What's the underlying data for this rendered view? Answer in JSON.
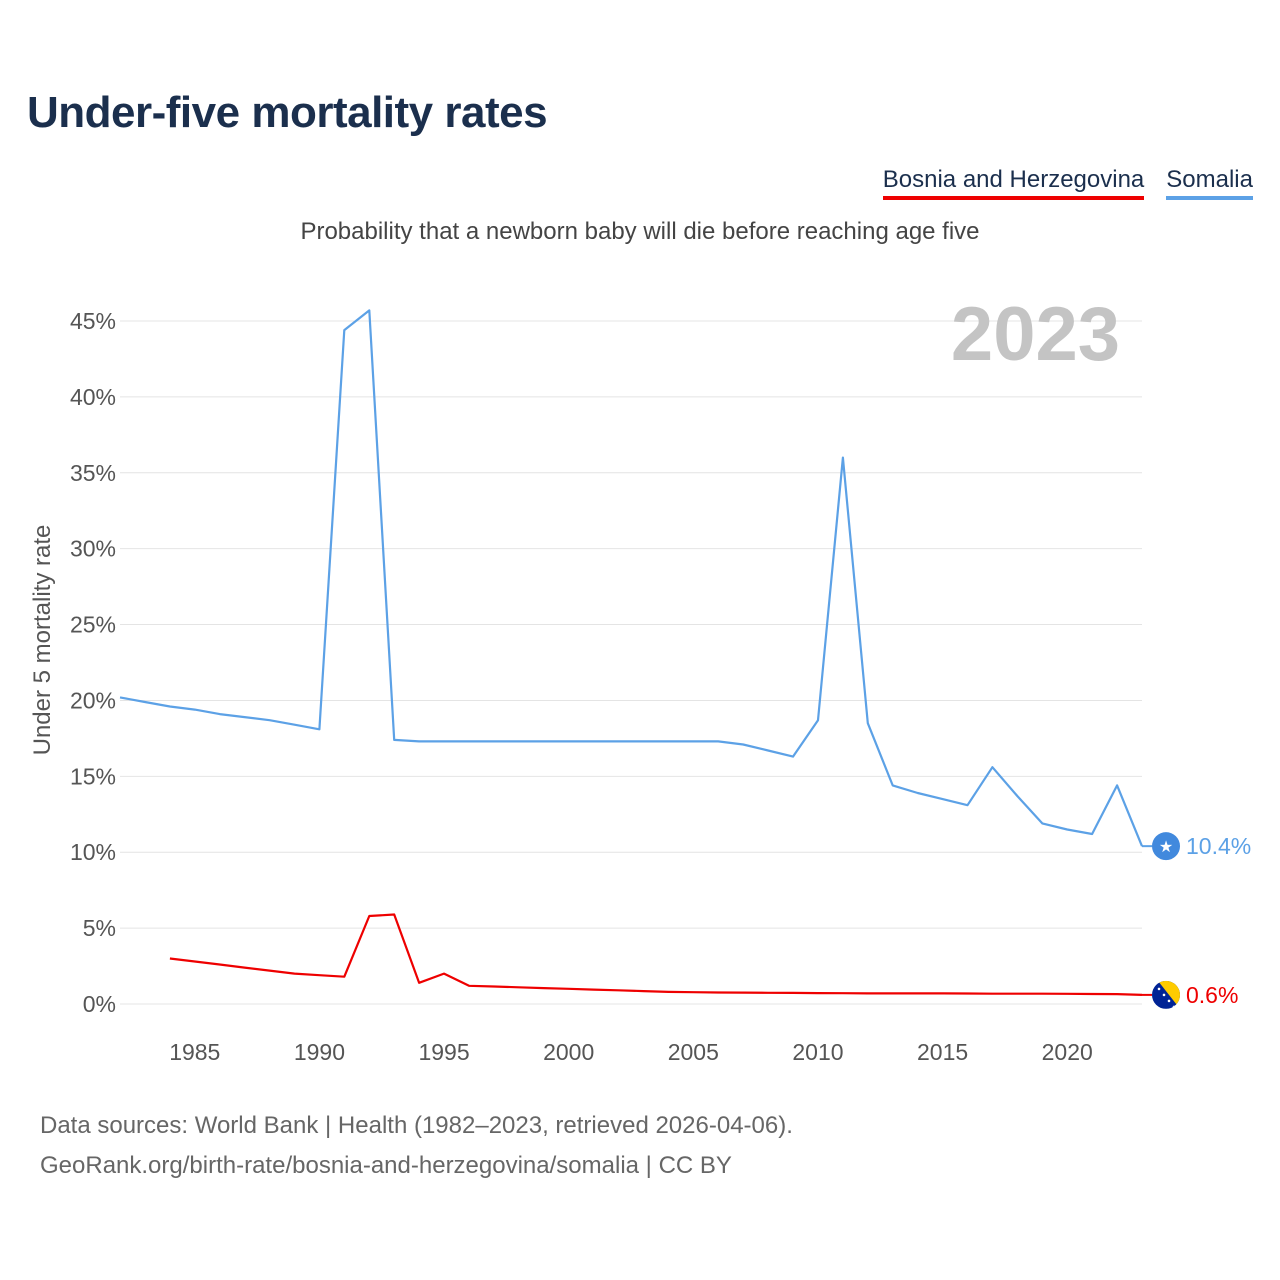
{
  "title": "Under-five mortality rates",
  "subtitle": "Probability that a newborn baby will die before reaching age five",
  "legend": [
    {
      "label": "Bosnia and Herzegovina",
      "color": "#ee0000"
    },
    {
      "label": "Somalia",
      "color": "#5ca1e6"
    }
  ],
  "footer": {
    "line1": "Data sources: World Bank | Health (1982–2023, retrieved 2026-04-06).",
    "line2": "GeoRank.org/birth-rate/bosnia-and-herzegovina/somalia | CC BY"
  },
  "chart_data": {
    "type": "line",
    "title": "Under-five mortality rates",
    "ylabel": "Under 5 mortality rate",
    "xlabel": "",
    "year_label": "2023",
    "xlim": [
      1982,
      2023
    ],
    "ylim": [
      0,
      45
    ],
    "x_ticks": [
      1985,
      1990,
      1995,
      2000,
      2005,
      2010,
      2015,
      2020
    ],
    "y_ticks": [
      0,
      5,
      10,
      15,
      20,
      25,
      30,
      35,
      40,
      45
    ],
    "y_tick_labels": [
      "0%",
      "5%",
      "10%",
      "15%",
      "20%",
      "25%",
      "30%",
      "35%",
      "40%",
      "45%"
    ],
    "series": [
      {
        "name": "Somalia",
        "color": "#5ca1e6",
        "end_label": "10.4%",
        "flag": "somalia-flag",
        "points": [
          [
            1982,
            20.2
          ],
          [
            1983,
            19.9
          ],
          [
            1984,
            19.6
          ],
          [
            1985,
            19.4
          ],
          [
            1986,
            19.1
          ],
          [
            1987,
            18.9
          ],
          [
            1988,
            18.7
          ],
          [
            1989,
            18.4
          ],
          [
            1990,
            18.1
          ],
          [
            1991,
            44.4
          ],
          [
            1992,
            45.7
          ],
          [
            1993,
            17.4
          ],
          [
            1994,
            17.3
          ],
          [
            1995,
            17.3
          ],
          [
            1996,
            17.3
          ],
          [
            1997,
            17.3
          ],
          [
            1998,
            17.3
          ],
          [
            1999,
            17.3
          ],
          [
            2000,
            17.3
          ],
          [
            2001,
            17.3
          ],
          [
            2002,
            17.3
          ],
          [
            2003,
            17.3
          ],
          [
            2004,
            17.3
          ],
          [
            2005,
            17.3
          ],
          [
            2006,
            17.3
          ],
          [
            2007,
            17.1
          ],
          [
            2008,
            16.7
          ],
          [
            2009,
            16.3
          ],
          [
            2010,
            18.7
          ],
          [
            2011,
            36.0
          ],
          [
            2012,
            18.5
          ],
          [
            2013,
            14.4
          ],
          [
            2014,
            13.9
          ],
          [
            2015,
            13.5
          ],
          [
            2016,
            13.1
          ],
          [
            2017,
            15.6
          ],
          [
            2018,
            13.7
          ],
          [
            2019,
            11.9
          ],
          [
            2020,
            11.5
          ],
          [
            2021,
            11.2
          ],
          [
            2022,
            14.4
          ],
          [
            2023,
            10.4
          ]
        ]
      },
      {
        "name": "Bosnia and Herzegovina",
        "color": "#ee0000",
        "end_label": "0.6%",
        "flag": "bosnia-flag",
        "points": [
          [
            1984,
            3.0
          ],
          [
            1985,
            2.8
          ],
          [
            1986,
            2.6
          ],
          [
            1987,
            2.4
          ],
          [
            1988,
            2.2
          ],
          [
            1989,
            2.0
          ],
          [
            1990,
            1.9
          ],
          [
            1991,
            1.8
          ],
          [
            1992,
            5.8
          ],
          [
            1993,
            5.9
          ],
          [
            1994,
            1.4
          ],
          [
            1995,
            2.0
          ],
          [
            1996,
            1.2
          ],
          [
            1997,
            1.15
          ],
          [
            1998,
            1.1
          ],
          [
            1999,
            1.05
          ],
          [
            2000,
            1.0
          ],
          [
            2001,
            0.95
          ],
          [
            2002,
            0.9
          ],
          [
            2003,
            0.85
          ],
          [
            2004,
            0.8
          ],
          [
            2005,
            0.78
          ],
          [
            2006,
            0.76
          ],
          [
            2007,
            0.75
          ],
          [
            2008,
            0.74
          ],
          [
            2009,
            0.73
          ],
          [
            2010,
            0.72
          ],
          [
            2011,
            0.71
          ],
          [
            2012,
            0.7
          ],
          [
            2013,
            0.7
          ],
          [
            2014,
            0.7
          ],
          [
            2015,
            0.7
          ],
          [
            2016,
            0.69
          ],
          [
            2017,
            0.68
          ],
          [
            2018,
            0.68
          ],
          [
            2019,
            0.68
          ],
          [
            2020,
            0.67
          ],
          [
            2021,
            0.66
          ],
          [
            2022,
            0.65
          ],
          [
            2023,
            0.6
          ]
        ]
      }
    ]
  }
}
